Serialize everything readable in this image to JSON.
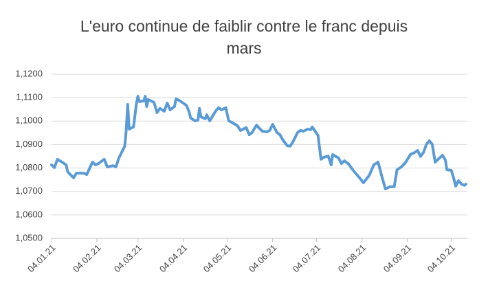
{
  "chart_data": {
    "type": "line",
    "title": "L'euro continue de faiblir contre le franc depuis mars",
    "x": [
      "04.01.21",
      "06.01.21",
      "08.01.21",
      "12.01.21",
      "14.01.21",
      "15.01.21",
      "19.01.21",
      "21.01.21",
      "26.01.21",
      "28.01.21",
      "01.02.21",
      "03.02.21",
      "05.02.21",
      "09.02.21",
      "11.02.21",
      "15.02.21",
      "17.02.21",
      "19.02.21",
      "23.02.21",
      "24.02.21",
      "25.02.21",
      "26.02.21",
      "01.03.21",
      "03.03.21",
      "04.03.21",
      "05.03.21",
      "08.03.21",
      "09.03.21",
      "10.03.21",
      "11.03.21",
      "15.03.21",
      "17.03.21",
      "19.03.21",
      "22.03.21",
      "24.03.21",
      "26.03.21",
      "29.03.21",
      "30.03.21",
      "01.04.21",
      "06.04.21",
      "08.04.21",
      "09.04.21",
      "12.04.21",
      "14.04.21",
      "15.04.21",
      "16.04.21",
      "19.04.21",
      "20.04.21",
      "22.04.21",
      "26.04.21",
      "28.04.21",
      "30.04.21",
      "03.05.21",
      "05.05.21",
      "07.05.21",
      "11.05.21",
      "13.05.21",
      "17.05.21",
      "19.05.21",
      "21.05.21",
      "24.05.21",
      "26.05.21",
      "28.05.21",
      "31.05.21",
      "02.06.21",
      "04.06.21",
      "07.06.21",
      "09.06.21",
      "11.06.21",
      "14.06.21",
      "16.06.21",
      "18.06.21",
      "21.06.21",
      "23.06.21",
      "25.06.21",
      "28.06.21",
      "30.06.21",
      "01.07.21",
      "05.07.21",
      "07.07.21",
      "09.07.21",
      "12.07.21",
      "14.07.21",
      "15.07.21",
      "19.07.21",
      "21.07.21",
      "23.07.21",
      "26.07.21",
      "29.07.21",
      "02.08.21",
      "05.08.21",
      "09.08.21",
      "12.08.21",
      "15.08.21",
      "18.08.21",
      "20.08.21",
      "23.08.21",
      "26.08.21",
      "28.08.21",
      "31.08.21",
      "03.09.21",
      "06.09.21",
      "09.09.21",
      "11.09.21",
      "13.09.21",
      "15.09.21",
      "17.09.21",
      "19.09.21",
      "21.09.21",
      "23.09.21",
      "25.09.21",
      "28.09.21",
      "30.09.21",
      "01.10.21",
      "04.10.21",
      "06.10.21",
      "07.10.21",
      "09.10.21",
      "11.10.21",
      "13.10.21",
      "14.10.21"
    ],
    "series": [
      {
        "color": "#5b9bd5",
        "values": [
          1.0813,
          1.0802,
          1.0837,
          1.0822,
          1.0813,
          1.0784,
          1.0758,
          1.0778,
          1.0778,
          1.0772,
          1.0825,
          1.0813,
          1.0819,
          1.0837,
          1.0805,
          1.081,
          1.0805,
          1.0843,
          1.0893,
          1.096,
          1.1071,
          1.0966,
          1.0975,
          1.1077,
          1.1106,
          1.1083,
          1.1086,
          1.1106,
          1.1062,
          1.1092,
          1.108,
          1.1036,
          1.1054,
          1.1042,
          1.1077,
          1.1048,
          1.1062,
          1.1095,
          1.1089,
          1.1068,
          1.1039,
          1.1013,
          1.1001,
          1.1004,
          1.1054,
          1.1018,
          1.101,
          1.1027,
          1.1001,
          1.1042,
          1.1057,
          1.1048,
          1.1057,
          1.1001,
          1.0995,
          1.098,
          1.096,
          1.0972,
          1.0942,
          1.0951,
          1.0983,
          1.0969,
          1.0957,
          1.0954,
          1.096,
          1.0986,
          1.0951,
          1.0942,
          1.0919,
          1.0895,
          1.0893,
          1.0913,
          1.0951,
          1.096,
          1.0957,
          1.0966,
          1.0963,
          1.0975,
          1.0939,
          1.0837,
          1.0846,
          1.0851,
          1.0813,
          1.0857,
          1.0843,
          1.0819,
          1.0831,
          1.0816,
          1.079,
          1.0761,
          1.0737,
          1.0769,
          1.0813,
          1.0825,
          1.0755,
          1.0711,
          1.072,
          1.072,
          1.0793,
          1.0805,
          1.0825,
          1.0857,
          1.0866,
          1.0875,
          1.0849,
          1.0866,
          1.0901,
          1.0916,
          1.0901,
          1.0825,
          1.0837,
          1.0854,
          1.0834,
          1.0793,
          1.079,
          1.0749,
          1.0723,
          1.0746,
          1.0731,
          1.0726,
          1.0731
        ]
      }
    ],
    "xlim": [
      "04.01.21",
      "15.10.21"
    ],
    "xticks": [
      "04.01.21",
      "04.02.21",
      "04.03.21",
      "04.04.21",
      "04.05.21",
      "04.06.21",
      "04.07.21",
      "04.08.21",
      "04.09.21",
      "04.10.21"
    ],
    "ylim": [
      1.05,
      1.12
    ],
    "yticks": [
      {
        "value": 1.05,
        "label": "1,0500"
      },
      {
        "value": 1.06,
        "label": "1,0600"
      },
      {
        "value": 1.07,
        "label": "1,0700"
      },
      {
        "value": 1.08,
        "label": "1,0800"
      },
      {
        "value": 1.09,
        "label": "1,0900"
      },
      {
        "value": 1.1,
        "label": "1,1000"
      },
      {
        "value": 1.11,
        "label": "1,1100"
      },
      {
        "value": 1.12,
        "label": "1,1200"
      }
    ],
    "grid": true
  }
}
